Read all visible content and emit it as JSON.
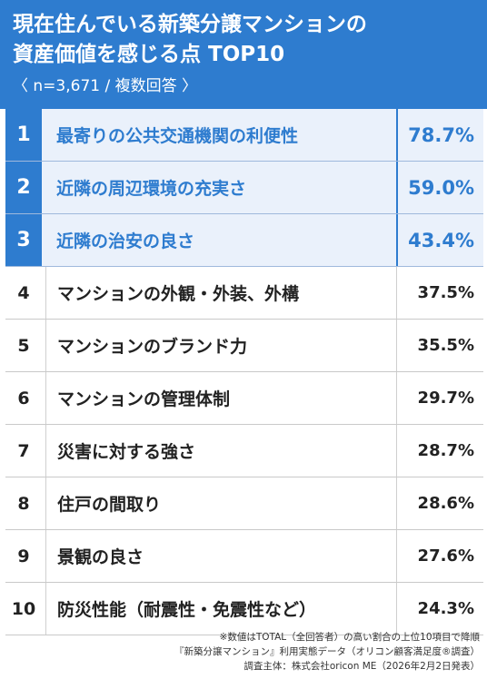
{
  "chart_data": {
    "type": "table",
    "title_line1": "現在住んでいる新築分譲マンションの",
    "title_line2": "資産価値を感じる点 TOP10",
    "subtitle": "〈 n=3,671 / 複数回答 〉",
    "rows": [
      {
        "rank": "1",
        "label": "最寄りの公共交通機関の利便性",
        "value": "78.7%",
        "highlight": true
      },
      {
        "rank": "2",
        "label": "近隣の周辺環境の充実さ",
        "value": "59.0%",
        "highlight": true
      },
      {
        "rank": "3",
        "label": "近隣の治安の良さ",
        "value": "43.4%",
        "highlight": true
      },
      {
        "rank": "4",
        "label": "マンションの外観・外装、外構",
        "value": "37.5%",
        "highlight": false
      },
      {
        "rank": "5",
        "label": "マンションのブランド力",
        "value": "35.5%",
        "highlight": false
      },
      {
        "rank": "6",
        "label": "マンションの管理体制",
        "value": "29.7%",
        "highlight": false
      },
      {
        "rank": "7",
        "label": "災害に対する強さ",
        "value": "28.7%",
        "highlight": false
      },
      {
        "rank": "8",
        "label": "住戸の間取り",
        "value": "28.6%",
        "highlight": false
      },
      {
        "rank": "9",
        "label": "景観の良さ",
        "value": "27.6%",
        "highlight": false
      },
      {
        "rank": "10",
        "label": "防災性能（耐震性・免震性など）",
        "value": "24.3%",
        "highlight": false
      }
    ],
    "accent_color": "#2e7ccf",
    "highlight_bg": "#eaf1fb"
  },
  "footnotes": [
    "※数値はTOTAL（全回答者）の高い割合の上位10項目で降順",
    "『新築分譲マンション』利用実態データ（オリコン顧客満足度®調査）",
    "調査主体：株式会社oricon ME（2026年2月2日発表）"
  ]
}
